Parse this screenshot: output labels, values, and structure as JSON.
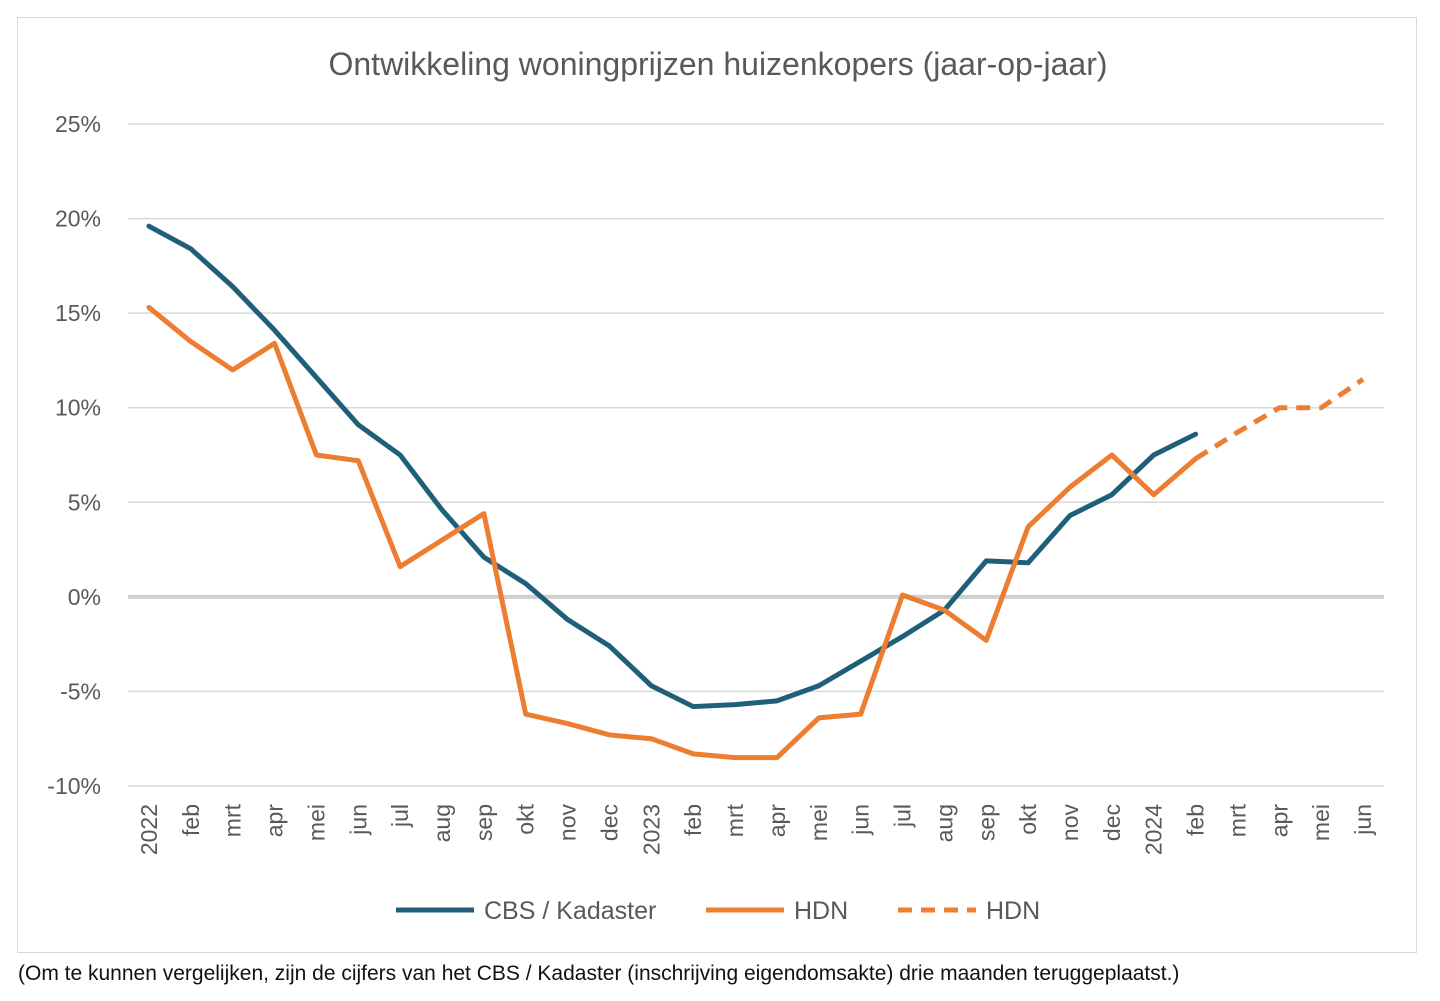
{
  "chart_data": {
    "type": "line",
    "title": "Ontwikkeling woningprijzen huizenkopers (jaar-op-jaar)",
    "xlabel": "",
    "ylabel": "",
    "categories": [
      "2022",
      "feb",
      "mrt",
      "apr",
      "mei",
      "jun",
      "jul",
      "aug",
      "sep",
      "okt",
      "nov",
      "dec",
      "2023",
      "feb",
      "mrt",
      "apr",
      "mei",
      "jun",
      "jul",
      "aug",
      "sep",
      "okt",
      "nov",
      "dec",
      "2024",
      "feb",
      "mrt",
      "apr",
      "mei",
      "jun"
    ],
    "ylim": [
      -10,
      25
    ],
    "yticks": [
      25,
      20,
      15,
      10,
      5,
      0,
      -5,
      -10
    ],
    "ytick_labels": [
      "25%",
      "20%",
      "15%",
      "10%",
      "5%",
      "0%",
      "-5%",
      "-10%"
    ],
    "grid": true,
    "legend_position": "bottom",
    "series": [
      {
        "name": "CBS / Kadaster",
        "color": "#1f5f7a",
        "style": "solid",
        "values": [
          19.6,
          18.4,
          16.4,
          14.1,
          11.6,
          9.1,
          7.5,
          4.6,
          2.1,
          0.7,
          -1.2,
          -2.6,
          -4.7,
          -5.8,
          -5.7,
          -5.5,
          -4.7,
          -3.4,
          -2.1,
          -0.7,
          1.9,
          1.8,
          4.3,
          5.4,
          7.5,
          8.6,
          null,
          null,
          null,
          null
        ]
      },
      {
        "name": "HDN",
        "color": "#ed7d31",
        "style": "solid",
        "values": [
          15.3,
          13.5,
          12.0,
          13.4,
          7.5,
          7.2,
          1.6,
          3.0,
          4.4,
          -6.2,
          -6.7,
          -7.3,
          -7.5,
          -8.3,
          -8.5,
          -8.5,
          -6.4,
          -6.2,
          0.1,
          -0.7,
          -2.3,
          3.7,
          5.8,
          7.5,
          5.4,
          7.3,
          null,
          null,
          null,
          null
        ]
      },
      {
        "name": "HDN",
        "color": "#ed7d31",
        "style": "dashed",
        "values": [
          null,
          null,
          null,
          null,
          null,
          null,
          null,
          null,
          null,
          null,
          null,
          null,
          null,
          null,
          null,
          null,
          null,
          null,
          null,
          null,
          null,
          null,
          null,
          null,
          null,
          7.3,
          8.7,
          10.0,
          10.0,
          11.5
        ]
      }
    ]
  },
  "footnote": "(Om te kunnen vergelijken, zijn de cijfers van het CBS / Kadaster (inschrijving eigendomsakte) drie maanden teruggeplaatst.)"
}
